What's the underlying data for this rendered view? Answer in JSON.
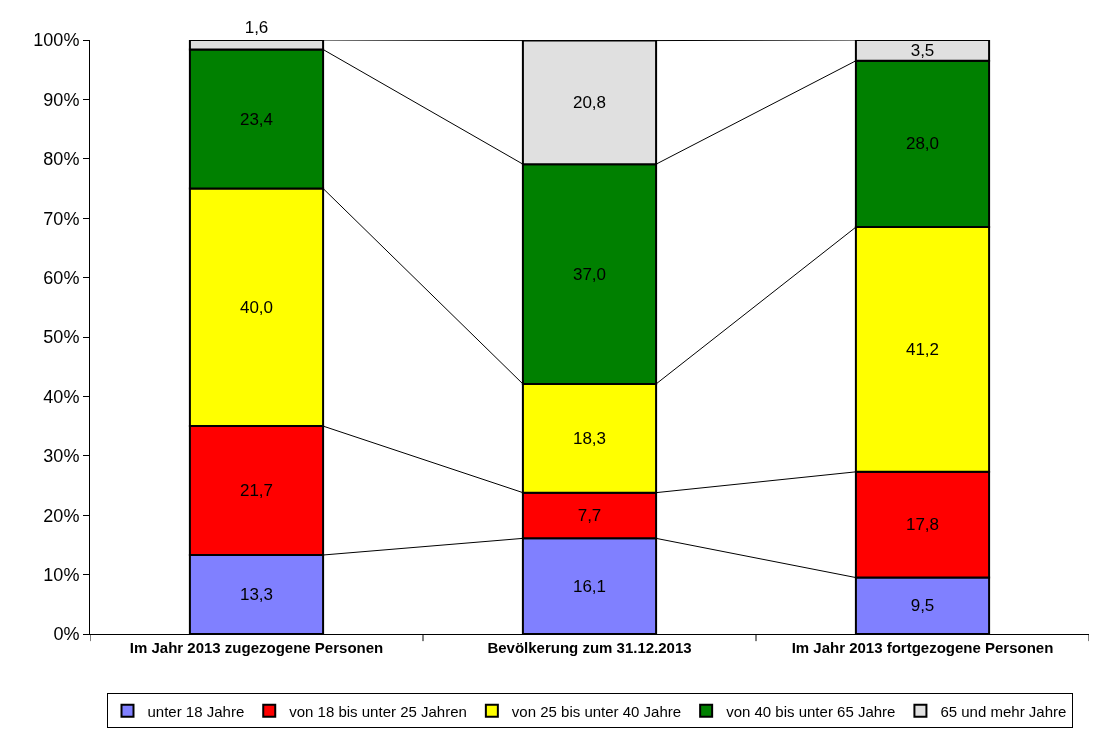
{
  "chart_data": {
    "type": "bar",
    "stacked": true,
    "categories": [
      "Im Jahr 2013 zugezogene Personen",
      "Bevölkerung zum 31.12.2013",
      "Im Jahr 2013 fortgezogene Personen"
    ],
    "series": [
      {
        "name": "unter 18 Jahre",
        "color": "#8080ff",
        "values": [
          13.3,
          16.1,
          9.5
        ],
        "value_labels": [
          "13,3",
          "16,1",
          "9,5"
        ]
      },
      {
        "name": "von 18 bis unter 25 Jahren",
        "color": "#ff0000",
        "values": [
          21.7,
          7.7,
          17.8
        ],
        "value_labels": [
          "21,7",
          "7,7",
          "17,8"
        ]
      },
      {
        "name": "von 25 bis unter 40 Jahre",
        "color": "#ffff00",
        "values": [
          40.0,
          18.3,
          41.2
        ],
        "value_labels": [
          "40,0",
          "18,3",
          "41,2"
        ]
      },
      {
        "name": "von 40 bis unter 65 Jahre",
        "color": "#008000",
        "values": [
          23.4,
          37.0,
          28.0
        ],
        "value_labels": [
          "23,4",
          "37,0",
          "28,0"
        ]
      },
      {
        "name": "65 und mehr Jahre",
        "color": "#e0e0e0",
        "values": [
          1.6,
          20.8,
          3.5
        ],
        "value_labels": [
          "1,6",
          "20,8",
          "3,5"
        ]
      }
    ],
    "ylim": [
      0,
      100
    ],
    "yticks": [
      {
        "value": 0,
        "label": "0%"
      },
      {
        "value": 10,
        "label": "10%"
      },
      {
        "value": 20,
        "label": "20%"
      },
      {
        "value": 30,
        "label": "30%"
      },
      {
        "value": 40,
        "label": "40%"
      },
      {
        "value": 50,
        "label": "50%"
      },
      {
        "value": 60,
        "label": "60%"
      },
      {
        "value": 70,
        "label": "70%"
      },
      {
        "value": 80,
        "label": "80%"
      },
      {
        "value": 90,
        "label": "90%"
      },
      {
        "value": 100,
        "label": "100%"
      }
    ],
    "grid": false,
    "legend": "bottom"
  }
}
